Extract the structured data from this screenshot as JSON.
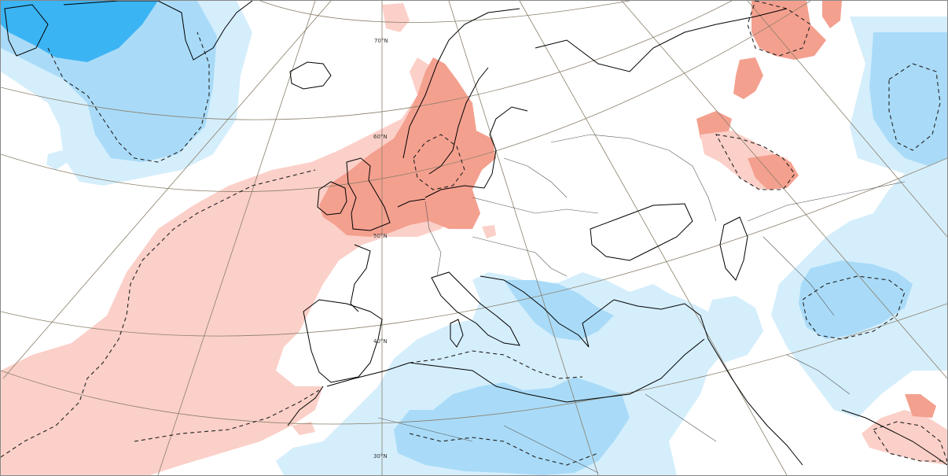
{
  "map": {
    "projection": "polar-stereographic",
    "region": "Europe, North Atlantic, North Africa, Middle East",
    "graticule": {
      "latitude_labels": [
        "70°N",
        "60°N",
        "50°N",
        "40°N",
        "30°N"
      ]
    },
    "shading": {
      "positive_strong": "#f4a08f",
      "positive_weak": "#fbd0c8",
      "negative_weak": "#d5eefc",
      "negative_medium": "#a9dbf8",
      "negative_strong": "#3bb4f3"
    },
    "line_colors": {
      "coastline": "#000000",
      "borders": "#555555",
      "graticule": "#8a7f6a",
      "contour": "#222222"
    }
  }
}
